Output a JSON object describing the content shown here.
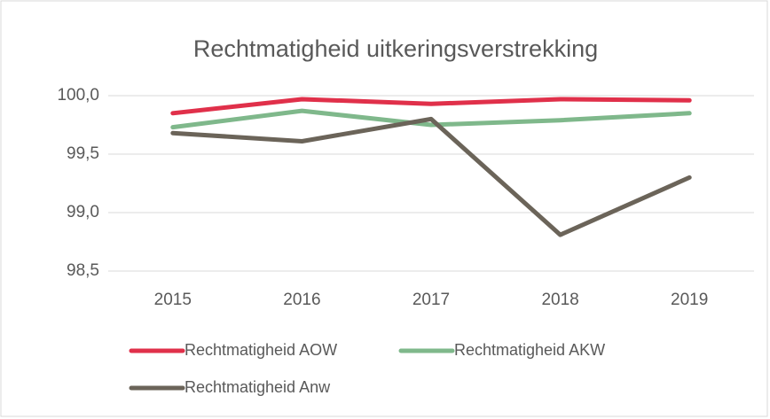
{
  "chart_data": {
    "type": "line",
    "title": "Rechtmatigheid uitkeringsverstrekking",
    "categories": [
      "2015",
      "2016",
      "2017",
      "2018",
      "2019"
    ],
    "series": [
      {
        "name": "Rechtmatigheid AOW",
        "color": "#e0304a",
        "values": [
          99.85,
          99.97,
          99.93,
          99.97,
          99.96
        ]
      },
      {
        "name": "Rechtmatigheid AKW",
        "color": "#7fb88b",
        "values": [
          99.73,
          99.87,
          99.75,
          99.79,
          99.85
        ]
      },
      {
        "name": "Rechtmatigheid Anw",
        "color": "#6b6459",
        "values": [
          99.68,
          99.61,
          99.8,
          98.81,
          99.3
        ]
      }
    ],
    "ylim": [
      98.5,
      100.0
    ],
    "yticks": [
      {
        "value": 98.5,
        "label": "98,5"
      },
      {
        "value": 99.0,
        "label": "99,0"
      },
      {
        "value": 99.5,
        "label": "99,5"
      },
      {
        "value": 100.0,
        "label": "100,0"
      }
    ],
    "grid": true,
    "legend": "bottom"
  }
}
